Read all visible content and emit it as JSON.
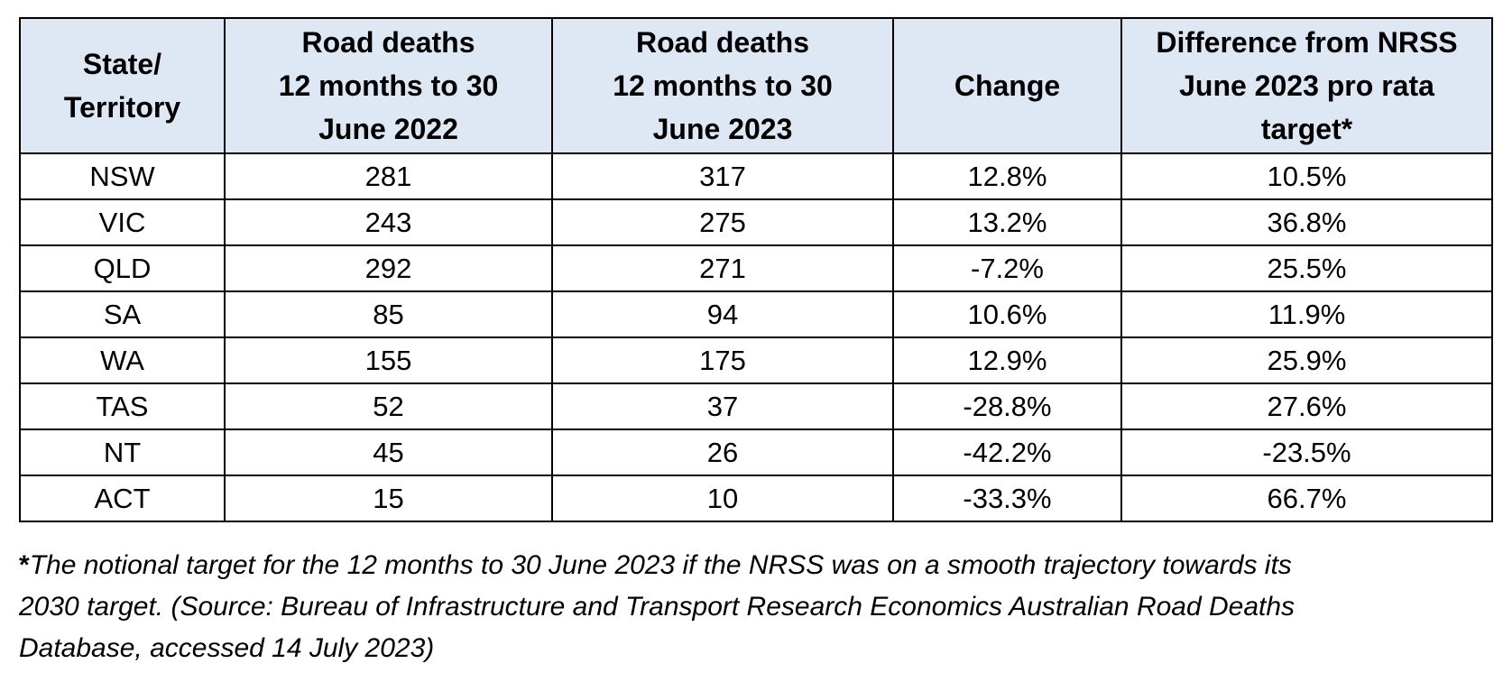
{
  "table": {
    "headers": [
      [
        "State/",
        "Territory"
      ],
      [
        "Road deaths",
        "12 months to 30",
        "June 2022"
      ],
      [
        "Road deaths",
        "12 months to 30",
        "June 2023"
      ],
      [
        "Change"
      ],
      [
        "Difference from NRSS",
        "June 2023 pro rata",
        "target*"
      ]
    ],
    "rows": [
      [
        "NSW",
        "281",
        "317",
        "12.8%",
        "10.5%"
      ],
      [
        "VIC",
        "243",
        "275",
        "13.2%",
        "36.8%"
      ],
      [
        "QLD",
        "292",
        "271",
        "-7.2%",
        "25.5%"
      ],
      [
        "SA",
        "85",
        "94",
        "10.6%",
        "11.9%"
      ],
      [
        "WA",
        "155",
        "175",
        "12.9%",
        "25.9%"
      ],
      [
        "TAS",
        "52",
        "37",
        "-28.8%",
        "27.6%"
      ],
      [
        "NT",
        "45",
        "26",
        "-42.2%",
        "-23.5%"
      ],
      [
        "ACT",
        "15",
        "10",
        "-33.3%",
        "66.7%"
      ]
    ]
  },
  "footnote": {
    "marker": "*",
    "lines": [
      "The notional target for the 12 months to 30 June 2023 if the NRSS was on a smooth trajectory towards its",
      "2030 target. (Source: Bureau of Infrastructure and Transport Research Economics Australian Road Deaths",
      "Database, accessed 14 July 2023)"
    ]
  },
  "colors": {
    "header_background": "#dde8f4",
    "border": "#000000",
    "text": "#000000"
  }
}
